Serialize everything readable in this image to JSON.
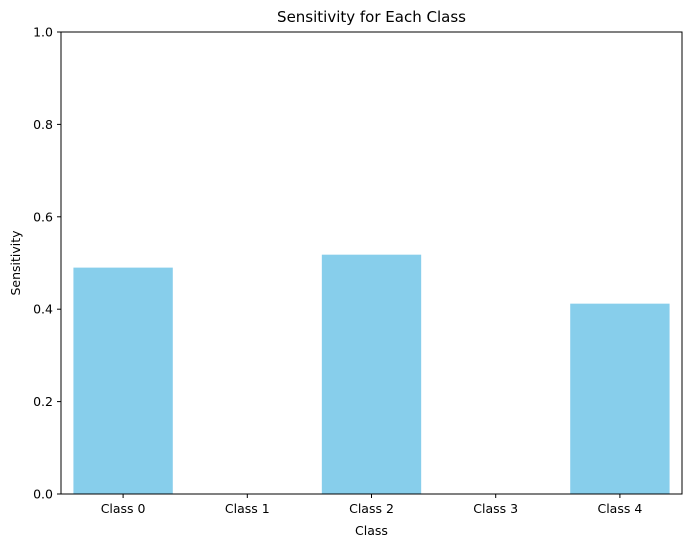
{
  "chart_data": {
    "type": "bar",
    "title": "Sensitivity for Each Class",
    "xlabel": "Class",
    "ylabel": "Sensitivity",
    "categories": [
      "Class 0",
      "Class 1",
      "Class 2",
      "Class 3",
      "Class 4"
    ],
    "values": [
      0.49,
      0.0,
      0.518,
      0.0,
      0.412
    ],
    "ylim": [
      0,
      1
    ],
    "yticks": [
      "0.0",
      "0.2",
      "0.4",
      "0.6",
      "0.8",
      "1.0"
    ],
    "bar_color": "#87CEEB",
    "grid": false,
    "legend": "none"
  }
}
